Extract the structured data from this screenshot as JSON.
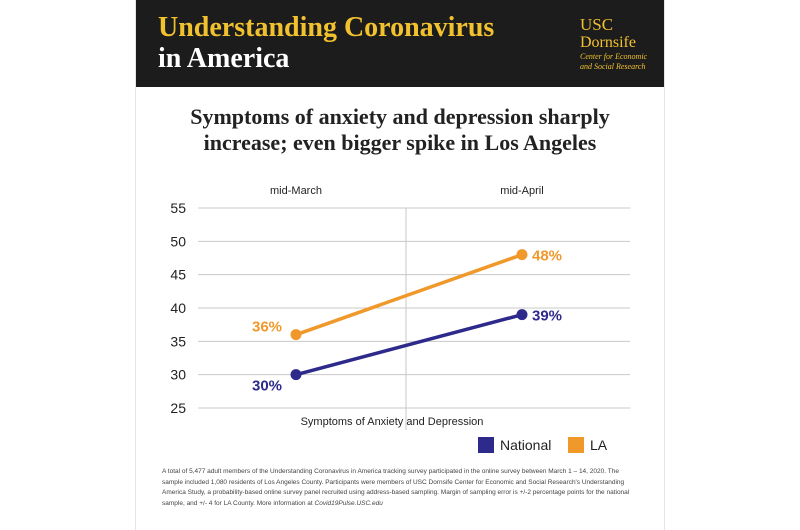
{
  "header": {
    "title_line1": "Understanding Coronavirus",
    "title_line2": "in America",
    "logo_usc": "USC",
    "logo_dornsife": "Dornsife",
    "logo_center_line1": "Center for Economic",
    "logo_center_line2": "and Social Research"
  },
  "colors": {
    "national": "#2e2a8c",
    "la": "#f0982a",
    "banner": "#1c1c1c",
    "title_accent": "#f2c12e"
  },
  "chart_data": {
    "type": "line",
    "title_line1": "Symptoms of anxiety and depression sharply",
    "title_line2": "increase; even bigger spike in Los Angeles",
    "categories": [
      "mid-March",
      "mid-April"
    ],
    "xlabel": "Symptoms of Anxiety and Depression",
    "ylabel": "",
    "ylim": [
      25,
      55
    ],
    "yticks": [
      25,
      30,
      35,
      40,
      45,
      50,
      55
    ],
    "grid": true,
    "legend": "bottom-right",
    "series": [
      {
        "name": "National",
        "key": "national",
        "values": [
          30,
          39
        ],
        "labels": [
          "30%",
          "39%"
        ]
      },
      {
        "name": "LA",
        "key": "la",
        "values": [
          36,
          48
        ],
        "labels": [
          "36%",
          "48%"
        ]
      }
    ]
  },
  "footnote": {
    "text": "A total of 5,477 adult members of the Understanding Coronavirus in America tracking survey participated in the online survey between March 1 – 14, 2020. The sample included 1,080 residents of Los Angeles County.  Participants were members of USC Dornsife Center for Economic and Social Research's Understanding America Study, a probability-based online survey panel recruited using address-based sampling.  Margin of sampling error is +/-2 percentage points for the national sample, and +/- 4 for LA County.  More information at",
    "link": "Covid19Pulse.USC.edu"
  }
}
